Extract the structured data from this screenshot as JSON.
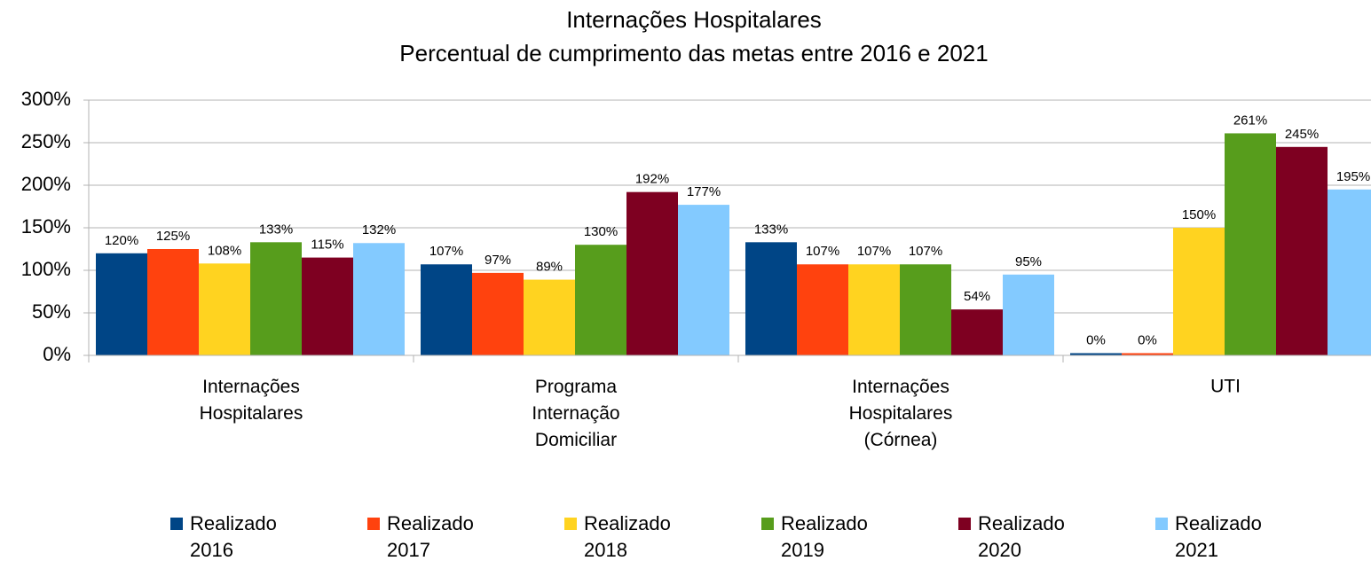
{
  "chart_data": {
    "type": "bar",
    "title": "Internações Hospitalares",
    "subtitle": "Percentual de cumprimento das metas entre 2016 e 2021",
    "categories": [
      "Internações\nHospitalares",
      "Programa\nInternação\nDomiciliar",
      "Internações\nHospitalares\n(Córnea)",
      "UTI"
    ],
    "series": [
      {
        "name": "Realizado\n2016",
        "color": "#004586",
        "values": [
          120,
          107,
          133,
          0
        ],
        "value_labels": [
          "120%",
          "107%",
          "133%",
          "0%"
        ]
      },
      {
        "name": "Realizado\n2017",
        "color": "#ff420e",
        "values": [
          125,
          97,
          107,
          0
        ],
        "value_labels": [
          "125%",
          "97%",
          "107%",
          "0%"
        ]
      },
      {
        "name": "Realizado\n2018",
        "color": "#ffd320",
        "values": [
          108,
          89,
          107,
          150
        ],
        "value_labels": [
          "108%",
          "89%",
          "107%",
          "150%"
        ]
      },
      {
        "name": "Realizado\n2019",
        "color": "#579d1c",
        "values": [
          133,
          130,
          107,
          261
        ],
        "value_labels": [
          "133%",
          "130%",
          "107%",
          "261%"
        ]
      },
      {
        "name": "Realizado\n2020",
        "color": "#7e0021",
        "values": [
          115,
          192,
          54,
          245
        ],
        "value_labels": [
          "115%",
          "192%",
          "54%",
          "245%"
        ]
      },
      {
        "name": "Realizado\n2021",
        "color": "#83caff",
        "values": [
          132,
          177,
          95,
          195
        ],
        "value_labels": [
          "132%",
          "177%",
          "95%",
          "195%"
        ]
      }
    ],
    "ylim": [
      0,
      300
    ],
    "yticks": [
      {
        "value": 0,
        "label": "0%"
      },
      {
        "value": 50,
        "label": "50%"
      },
      {
        "value": 100,
        "label": "100%"
      },
      {
        "value": 150,
        "label": "150%"
      },
      {
        "value": 200,
        "label": "200%"
      },
      {
        "value": 250,
        "label": "250%"
      },
      {
        "value": 300,
        "label": "300%"
      }
    ],
    "grid": true,
    "legend": "bottom"
  }
}
